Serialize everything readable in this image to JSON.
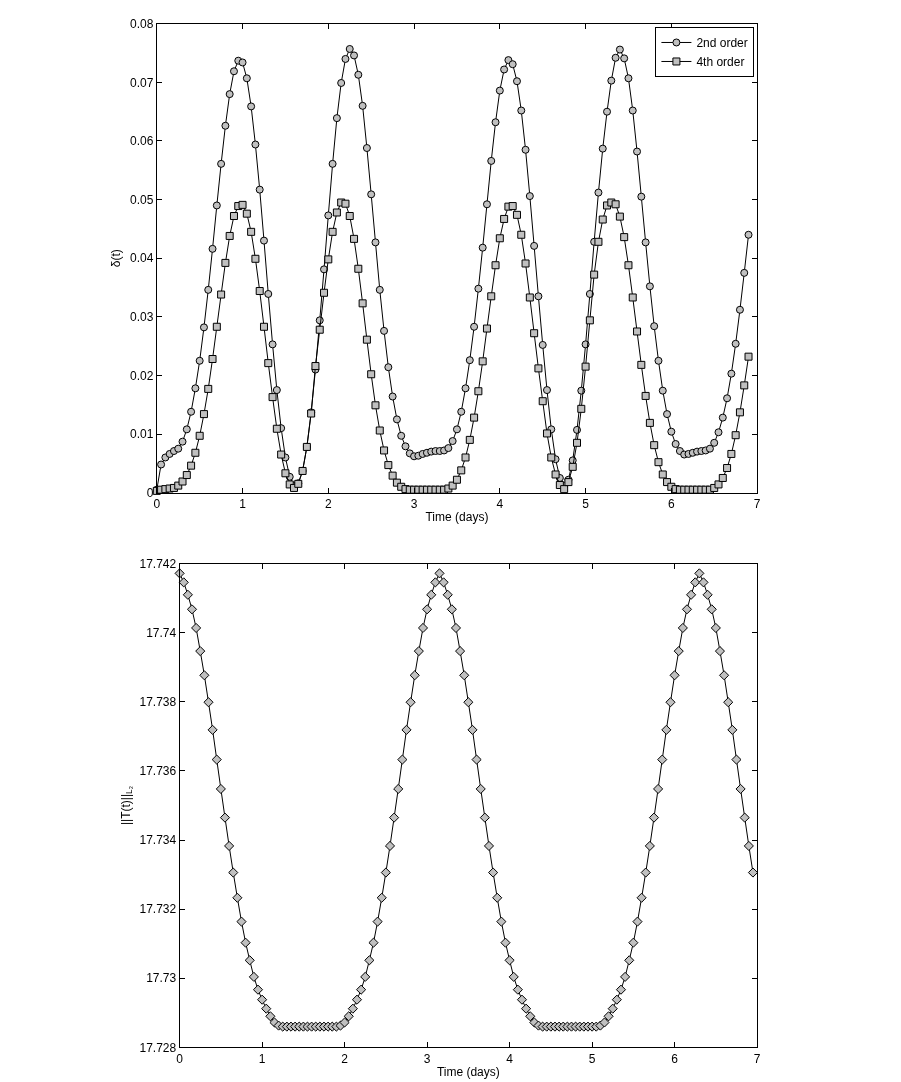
{
  "chart_data": [
    {
      "type": "line",
      "xlabel": "Time (days)",
      "ylabel": "δ(t)",
      "xlim": [
        0,
        7
      ],
      "ylim": [
        0,
        0.08
      ],
      "xticks": [
        0,
        1,
        2,
        3,
        4,
        5,
        6,
        7
      ],
      "yticks": [
        0,
        0.01,
        0.02,
        0.03,
        0.04,
        0.05,
        0.06,
        0.07,
        0.08
      ],
      "legend": "top right",
      "line_style": "solid",
      "x": [
        0,
        0.05,
        0.1,
        0.15,
        0.2,
        0.25,
        0.3,
        0.35,
        0.4,
        0.45,
        0.5,
        0.55,
        0.6,
        0.65,
        0.7,
        0.75,
        0.8,
        0.85,
        0.9,
        0.95,
        1,
        1.05,
        1.1,
        1.15,
        1.2,
        1.25,
        1.3,
        1.35,
        1.4,
        1.45,
        1.5,
        1.55,
        1.6,
        1.65,
        1.7,
        1.75,
        1.8,
        1.85,
        1.9,
        1.95,
        2,
        2.05,
        2.1,
        2.15,
        2.2,
        2.25,
        2.3,
        2.35,
        2.4,
        2.45,
        2.5,
        2.55,
        2.6,
        2.65,
        2.7,
        2.75,
        2.8,
        2.85,
        2.9,
        2.95,
        3,
        3.05,
        3.1,
        3.15,
        3.2,
        3.25,
        3.3,
        3.35,
        3.4,
        3.45,
        3.5,
        3.55,
        3.6,
        3.65,
        3.7,
        3.75,
        3.8,
        3.85,
        3.9,
        3.95,
        4,
        4.05,
        4.1,
        4.15,
        4.2,
        4.25,
        4.3,
        4.35,
        4.4,
        4.45,
        4.5,
        4.55,
        4.6,
        4.65,
        4.7,
        4.75,
        4.8,
        4.85,
        4.9,
        4.95,
        5,
        5.05,
        5.1,
        5.15,
        5.2,
        5.25,
        5.3,
        5.35,
        5.4,
        5.45,
        5.5,
        5.55,
        5.6,
        5.65,
        5.7,
        5.75,
        5.8,
        5.85,
        5.9,
        5.95,
        6,
        6.05,
        6.1,
        6.15,
        6.2,
        6.25,
        6.3,
        6.35,
        6.4,
        6.45,
        6.5,
        6.55,
        6.6,
        6.65,
        6.7,
        6.75,
        6.8,
        6.85,
        6.9
      ],
      "series": [
        {
          "name": "2nd order",
          "color": "#c0c0c0",
          "marker": "circle",
          "values": [
            0.0005,
            0.0048,
            0.006,
            0.0066,
            0.0071,
            0.0075,
            0.0087,
            0.0108,
            0.0138,
            0.0178,
            0.0225,
            0.0282,
            0.0346,
            0.0416,
            0.049,
            0.0561,
            0.0626,
            0.068,
            0.0719,
            0.0737,
            0.0734,
            0.0707,
            0.0659,
            0.0594,
            0.0517,
            0.043,
            0.0339,
            0.0253,
            0.0175,
            0.011,
            0.006,
            0.0027,
            0.0012,
            0.0016,
            0.0037,
            0.0078,
            0.0137,
            0.021,
            0.0294,
            0.0381,
            0.0473,
            0.0561,
            0.0639,
            0.0699,
            0.074,
            0.0757,
            0.0746,
            0.0713,
            0.066,
            0.0588,
            0.0509,
            0.0427,
            0.0346,
            0.0276,
            0.0214,
            0.0164,
            0.0125,
            0.0097,
            0.0079,
            0.0067,
            0.0062,
            0.0063,
            0.0066,
            0.0068,
            0.007,
            0.0071,
            0.0071,
            0.0072,
            0.0076,
            0.0088,
            0.0108,
            0.0138,
            0.0178,
            0.0226,
            0.0283,
            0.0348,
            0.0418,
            0.0492,
            0.0566,
            0.0632,
            0.0686,
            0.0722,
            0.0738,
            0.0731,
            0.0702,
            0.0652,
            0.0585,
            0.0506,
            0.0421,
            0.0335,
            0.0252,
            0.0175,
            0.0108,
            0.0057,
            0.0025,
            0.0012,
            0.0022,
            0.0055,
            0.0107,
            0.0174,
            0.0253,
            0.0339,
            0.0428,
            0.0512,
            0.0587,
            0.065,
            0.0703,
            0.0742,
            0.0756,
            0.0741,
            0.0707,
            0.0652,
            0.0582,
            0.0505,
            0.0427,
            0.0352,
            0.0284,
            0.0225,
            0.0174,
            0.0134,
            0.0104,
            0.0083,
            0.0071,
            0.0065,
            0.0066,
            0.0068,
            0.007,
            0.0071,
            0.0072,
            0.0075,
            0.0085,
            0.0103,
            0.0128,
            0.0161,
            0.0203,
            0.0254,
            0.0312,
            0.0375,
            0.044
          ]
        },
        {
          "name": "4th order",
          "color": "#c0c0c0",
          "marker": "square",
          "values": [
            0.0003,
            0.0005,
            0.0006,
            0.0007,
            0.0008,
            0.0012,
            0.0019,
            0.003,
            0.0046,
            0.0068,
            0.0097,
            0.0134,
            0.0177,
            0.0228,
            0.0283,
            0.0338,
            0.0392,
            0.0438,
            0.0472,
            0.0489,
            0.0491,
            0.0476,
            0.0445,
            0.0399,
            0.0344,
            0.0283,
            0.0221,
            0.0163,
            0.0109,
            0.0065,
            0.0033,
            0.0014,
            0.0008,
            0.0015,
            0.0037,
            0.0078,
            0.0135,
            0.0216,
            0.0278,
            0.0341,
            0.0398,
            0.0445,
            0.0478,
            0.0495,
            0.0493,
            0.0472,
            0.0433,
            0.0382,
            0.0323,
            0.0261,
            0.0202,
            0.0149,
            0.0106,
            0.0072,
            0.0047,
            0.0029,
            0.0017,
            0.001,
            0.0006,
            0.0005,
            0.0005,
            0.0005,
            0.0005,
            0.0005,
            0.0005,
            0.0005,
            0.0005,
            0.0005,
            0.0007,
            0.0012,
            0.0022,
            0.0038,
            0.006,
            0.009,
            0.0128,
            0.0173,
            0.0224,
            0.028,
            0.0335,
            0.0388,
            0.0434,
            0.0467,
            0.0488,
            0.0489,
            0.0474,
            0.044,
            0.0391,
            0.0333,
            0.0272,
            0.0212,
            0.0156,
            0.0101,
            0.006,
            0.0031,
            0.0013,
            0.0006,
            0.0018,
            0.0044,
            0.0085,
            0.0143,
            0.0215,
            0.0294,
            0.0372,
            0.0428,
            0.0466,
            0.049,
            0.0495,
            0.0492,
            0.0471,
            0.0436,
            0.0388,
            0.0333,
            0.0275,
            0.0218,
            0.0165,
            0.0119,
            0.0081,
            0.0052,
            0.0031,
            0.0018,
            0.001,
            0.0006,
            0.0005,
            0.0005,
            0.0005,
            0.0005,
            0.0005,
            0.0005,
            0.0005,
            0.0005,
            0.0008,
            0.0014,
            0.0025,
            0.0042,
            0.0066,
            0.0098,
            0.0137,
            0.0183,
            0.0232
          ]
        }
      ]
    },
    {
      "type": "line",
      "xlabel": "Time (days)",
      "ylabel": "||T(t)||$_{L₂}$",
      "xlim": [
        0,
        7
      ],
      "ylim": [
        17.728,
        17.742
      ],
      "xticks": [
        0,
        1,
        2,
        3,
        4,
        5,
        6,
        7
      ],
      "yticks": [
        17.728,
        17.73,
        17.732,
        17.734,
        17.736,
        17.738,
        17.74,
        17.742
      ],
      "line_style": "solid",
      "x": [
        0,
        0.05,
        0.1,
        0.15,
        0.2,
        0.25,
        0.3,
        0.35,
        0.4,
        0.45,
        0.5,
        0.55,
        0.6,
        0.65,
        0.7,
        0.75,
        0.8,
        0.85,
        0.9,
        0.95,
        1,
        1.05,
        1.1,
        1.15,
        1.2,
        1.25,
        1.3,
        1.35,
        1.4,
        1.45,
        1.5,
        1.55,
        1.6,
        1.65,
        1.7,
        1.75,
        1.8,
        1.85,
        1.9,
        1.95,
        2,
        2.05,
        2.1,
        2.15,
        2.2,
        2.25,
        2.3,
        2.35,
        2.4,
        2.45,
        2.5,
        2.55,
        2.6,
        2.65,
        2.7,
        2.75,
        2.8,
        2.85,
        2.9,
        2.95,
        3,
        3.05,
        3.1,
        3.15,
        3.2,
        3.25,
        3.3,
        3.35,
        3.4,
        3.45,
        3.5,
        3.55,
        3.6,
        3.65,
        3.7,
        3.75,
        3.8,
        3.85,
        3.9,
        3.95,
        4,
        4.05,
        4.1,
        4.15,
        4.2,
        4.25,
        4.3,
        4.35,
        4.4,
        4.45,
        4.5,
        4.55,
        4.6,
        4.65,
        4.7,
        4.75,
        4.8,
        4.85,
        4.9,
        4.95,
        5,
        5.05,
        5.1,
        5.15,
        5.2,
        5.25,
        5.3,
        5.35,
        5.4,
        5.45,
        5.5,
        5.55,
        5.6,
        5.65,
        5.7,
        5.75,
        5.8,
        5.85,
        5.9,
        5.95,
        6,
        6.05,
        6.1,
        6.15,
        6.2,
        6.25,
        6.3,
        6.35,
        6.4,
        6.45,
        6.5,
        6.55,
        6.6,
        6.65,
        6.7,
        6.75,
        6.8,
        6.85,
        6.9,
        6.95
      ],
      "series": [
        {
          "color": "#c0c0c0",
          "marker": "diamond",
          "values": [
            17.74172,
            17.74146,
            17.7411,
            17.74068,
            17.74014,
            17.73947,
            17.73877,
            17.73799,
            17.73719,
            17.73633,
            17.73548,
            17.73465,
            17.73383,
            17.73306,
            17.73233,
            17.73164,
            17.73103,
            17.73052,
            17.73004,
            17.72967,
            17.72938,
            17.72912,
            17.7289,
            17.72872,
            17.72863,
            17.7286,
            17.7286,
            17.7286,
            17.7286,
            17.7286,
            17.7286,
            17.7286,
            17.7286,
            17.7286,
            17.7286,
            17.7286,
            17.7286,
            17.7286,
            17.7286,
            17.72863,
            17.72872,
            17.7289,
            17.72912,
            17.72938,
            17.72967,
            17.73004,
            17.73052,
            17.73103,
            17.73164,
            17.73233,
            17.73306,
            17.73383,
            17.73465,
            17.73548,
            17.73633,
            17.73719,
            17.73799,
            17.73877,
            17.73947,
            17.74014,
            17.74068,
            17.7411,
            17.74146,
            17.74172,
            17.74146,
            17.7411,
            17.74068,
            17.74014,
            17.73947,
            17.73877,
            17.73799,
            17.73719,
            17.73633,
            17.73548,
            17.73465,
            17.73383,
            17.73306,
            17.73233,
            17.73164,
            17.73103,
            17.73052,
            17.73004,
            17.72967,
            17.72938,
            17.72912,
            17.7289,
            17.72872,
            17.72863,
            17.7286,
            17.7286,
            17.7286,
            17.7286,
            17.7286,
            17.7286,
            17.7286,
            17.7286,
            17.7286,
            17.7286,
            17.7286,
            17.7286,
            17.7286,
            17.7286,
            17.72863,
            17.72872,
            17.7289,
            17.72912,
            17.72938,
            17.72967,
            17.73004,
            17.73052,
            17.73103,
            17.73164,
            17.73233,
            17.73306,
            17.73383,
            17.73465,
            17.73548,
            17.73633,
            17.73719,
            17.73799,
            17.73877,
            17.73947,
            17.74014,
            17.74068,
            17.7411,
            17.74146,
            17.74172,
            17.74146,
            17.7411,
            17.74068,
            17.74014,
            17.73947,
            17.73877,
            17.73799,
            17.73719,
            17.73633,
            17.73548,
            17.73465,
            17.73383,
            17.73306
          ]
        }
      ]
    }
  ]
}
